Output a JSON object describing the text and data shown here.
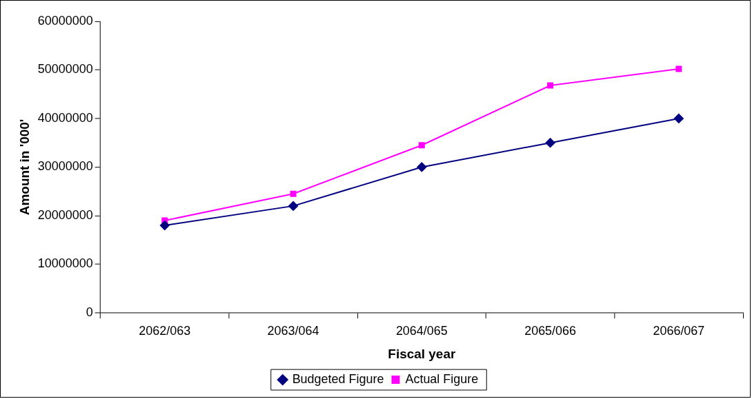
{
  "chart_data": {
    "type": "line",
    "xlabel": "Fiscal year",
    "ylabel": "Amount in '000'",
    "categories": [
      "2062/063",
      "2063/064",
      "2064/065",
      "2065/066",
      "2066/067"
    ],
    "series": [
      {
        "name": "Budgeted Figure",
        "color": "#000080",
        "marker": "diamond",
        "values": [
          18000000,
          22000000,
          30000000,
          35000000,
          40000000
        ]
      },
      {
        "name": "Actual Figure",
        "color": "#ff00ff",
        "marker": "square",
        "values": [
          19000000,
          24500000,
          34500000,
          46800000,
          50200000
        ]
      }
    ],
    "ylim": [
      0,
      60000000
    ],
    "yticks": [
      0,
      10000000,
      20000000,
      30000000,
      40000000,
      50000000,
      60000000
    ],
    "grid": false,
    "legend": "bottom",
    "line_style": "solid"
  }
}
